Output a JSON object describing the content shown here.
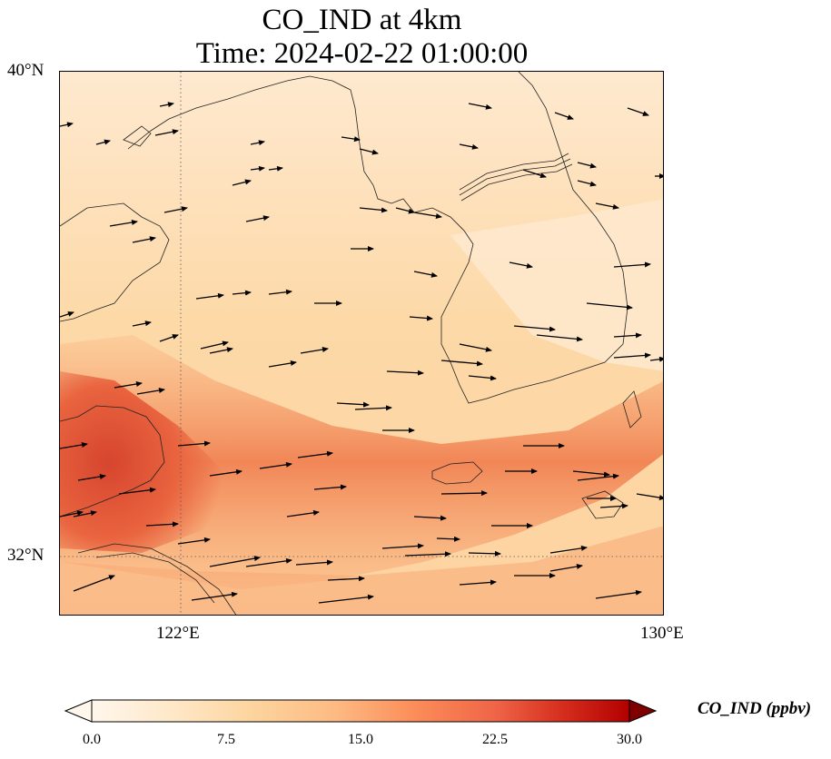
{
  "title": {
    "line1": "CO_IND at 4km",
    "line2": "Time: 2024-02-22 01:00:00"
  },
  "map": {
    "lat_labels": [
      "40°N",
      "32°N"
    ],
    "lon_labels": [
      "122°E",
      "130°E"
    ],
    "lat_range": [
      31,
      40
    ],
    "lon_range": [
      120,
      130
    ],
    "variable": "CO_IND",
    "gridlines": "dotted at 122°E and 32°N",
    "coastline_color": "#222222",
    "arrow_color": "#000000"
  },
  "colorbar": {
    "label": "CO_IND (ppbv)",
    "ticks": [
      "0.0",
      "7.5",
      "15.0",
      "22.5",
      "30.0"
    ],
    "range": [
      0,
      30
    ],
    "colormap": "OrRd",
    "extend": "both"
  }
}
